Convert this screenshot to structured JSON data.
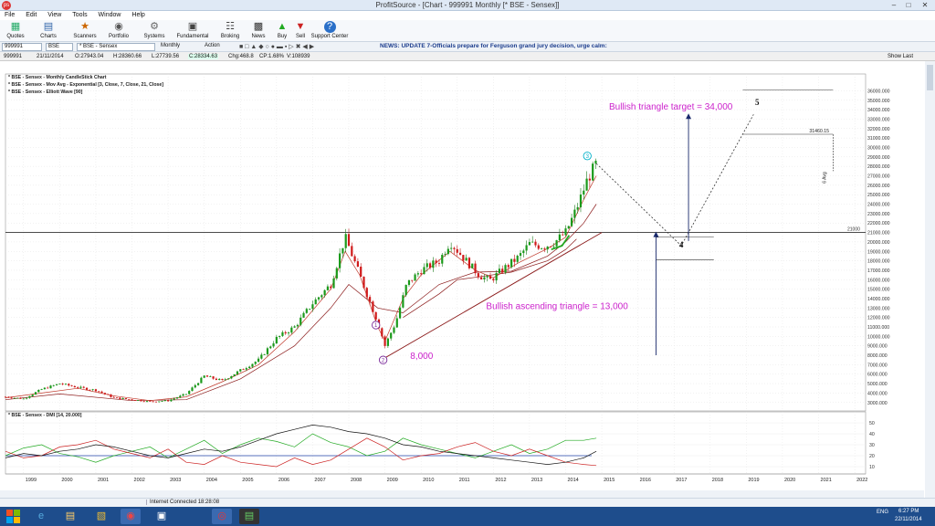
{
  "window": {
    "title": "ProfitSource - [Chart - 999991 Monthly [* BSE - Sensex]]",
    "app_logo_text": "ps"
  },
  "menu": [
    "File",
    "Edit",
    "View",
    "Tools",
    "Window",
    "Help"
  ],
  "toolbar": [
    {
      "label": "Quotes",
      "icon": "quotes-icon"
    },
    {
      "label": "Charts",
      "icon": "charts-icon"
    },
    {
      "label": "Scanners",
      "icon": "scanners-icon"
    },
    {
      "label": "Portfolio",
      "icon": "portfolio-icon"
    },
    {
      "label": "Systems",
      "icon": "systems-icon"
    },
    {
      "label": "Fundamental",
      "icon": "fundamental-icon"
    },
    {
      "label": "Broking",
      "icon": "broking-icon"
    },
    {
      "label": "News",
      "icon": "news-icon"
    },
    {
      "label": "Buy",
      "icon": "buy-icon"
    },
    {
      "label": "Sell",
      "icon": "sell-icon"
    },
    {
      "label": "Support Center",
      "icon": "help-icon"
    }
  ],
  "toolbar2": {
    "symbol": "999991",
    "exchange": "BSE",
    "instrument": "* BSE - Sensex",
    "period": "Monthly",
    "action": "Action",
    "news": "NEWS: UPDATE 7-Officials prepare for Ferguson grand jury decision, urge calm:"
  },
  "infobar": {
    "symbol": "999991",
    "date": "21/11/2014",
    "open": "O:27943.04",
    "high": "H:28360.66",
    "low": "L:27739.56",
    "close": "C:28334.63",
    "change": "Chg:468.8",
    "change_pct": "CP:1.68%",
    "volume": "V:108939",
    "show_last": "Show Last"
  },
  "chart_data": {
    "type": "line",
    "legend": [
      "* BSE - Sensex - Monthly CandleStick Chart",
      "* BSE - Sensex - Mov Avg - Exponential [3, Close, 7, Close, 21, Close]",
      "* BSE - Sensex - Elliott Wave [90]"
    ],
    "x_ticks": [
      "1999",
      "2000",
      "2001",
      "2002",
      "2003",
      "2004",
      "2005",
      "2006",
      "2007",
      "2008",
      "2009",
      "2010",
      "2011",
      "2012",
      "2013",
      "2014",
      "2015",
      "2016",
      "2017",
      "2018",
      "2019",
      "2020",
      "2021",
      "2022"
    ],
    "y_ticks": [
      "36000.000",
      "35000.000",
      "34000.000",
      "33000.000",
      "32000.000",
      "31000.000",
      "30000.000",
      "29000.000",
      "28000.000",
      "27000.000",
      "26000.000",
      "25000.000",
      "24000.000",
      "23000.000",
      "22000.000",
      "21000.000",
      "20000.000",
      "19000.000",
      "18000.000",
      "17000.000",
      "16000.000",
      "15000.000",
      "14000.000",
      "13000.000",
      "12000.000",
      "11000.000",
      "10000.000",
      "9000.000",
      "8000.000",
      "7000.000",
      "6000.000",
      "5000.000",
      "4000.000",
      "3000.000"
    ],
    "ylim": [
      2300,
      37200
    ],
    "price_series": {
      "x": [
        1998.5,
        1999.0,
        1999.5,
        2000.0,
        2000.5,
        2001.0,
        2001.5,
        2002.0,
        2002.5,
        2003.0,
        2003.5,
        2004.0,
        2004.5,
        2005.0,
        2005.5,
        2006.0,
        2006.5,
        2007.0,
        2007.5,
        2007.9,
        2008.2,
        2008.5,
        2008.8,
        2009.0,
        2009.3,
        2009.6,
        2010.0,
        2010.5,
        2010.8,
        2011.2,
        2011.6,
        2011.9,
        2012.3,
        2012.7,
        2013.0,
        2013.4,
        2013.7,
        2014.0,
        2014.3,
        2014.6,
        2014.85
      ],
      "y": [
        3600,
        3400,
        4400,
        5000,
        4600,
        4300,
        3500,
        3300,
        3100,
        3200,
        3900,
        5800,
        5300,
        6400,
        7500,
        9800,
        11000,
        13500,
        15500,
        20500,
        17500,
        14500,
        11500,
        9000,
        11500,
        15500,
        17000,
        18000,
        20000,
        18200,
        16500,
        15900,
        17200,
        18400,
        19800,
        19500,
        20000,
        21000,
        23500,
        26600,
        28300
      ]
    },
    "ema_short": {
      "x": [
        1998.5,
        1999.5,
        2000.5,
        2001.5,
        2002.5,
        2003.5,
        2004.5,
        2005.5,
        2006.5,
        2007.5,
        2007.9,
        2008.3,
        2008.8,
        2009.0,
        2009.5,
        2010.0,
        2010.8,
        2011.5,
        2012.0,
        2012.7,
        2013.5,
        2014.0,
        2014.5,
        2014.85
      ],
      "y": [
        3500,
        4000,
        4500,
        3700,
        3200,
        3600,
        5200,
        7000,
        10500,
        15000,
        19000,
        16500,
        11000,
        9500,
        14000,
        16500,
        19000,
        17000,
        16200,
        17800,
        19300,
        20500,
        24500,
        27000
      ]
    },
    "ema_long": {
      "x": [
        1998.5,
        2000.0,
        2002.0,
        2003.5,
        2005.0,
        2006.5,
        2007.5,
        2008.0,
        2008.8,
        2009.5,
        2010.5,
        2011.5,
        2012.5,
        2013.5,
        2014.0,
        2014.5,
        2014.85
      ],
      "y": [
        3300,
        3900,
        3200,
        3300,
        5500,
        9000,
        13000,
        15500,
        13000,
        12500,
        15500,
        16800,
        16900,
        18500,
        20000,
        22000,
        24000
      ],
      "color": "#8b1a1a"
    },
    "ema_21": {
      "x": [
        2009.5,
        2010.5,
        2011.0,
        2011.6,
        2012.5,
        2013.5,
        2014.0,
        2014.3
      ],
      "y": [
        12000,
        14500,
        16000,
        16300,
        16800,
        18000,
        19200,
        20300
      ],
      "color": "#8b1a1a"
    },
    "ema_green": {
      "x": [
        2013.6,
        2013.9,
        2014.1
      ],
      "y": [
        19200,
        19600,
        20700
      ],
      "color": "#22aa22"
    },
    "resistance_line": {
      "y": 21000,
      "label": "21000"
    },
    "trendline": {
      "x": [
        2008.9,
        2015.0
      ],
      "y": [
        7500,
        21000
      ],
      "color": "#8b1a1a"
    },
    "projection": {
      "x": [
        2014.85,
        2017.2,
        2019.2
      ],
      "y": [
        28300,
        19600,
        33500
      ]
    },
    "wave_labels": [
      {
        "text": "1",
        "x": 2008.75,
        "y": 11200,
        "color": "#7a2a9a"
      },
      {
        "text": "2",
        "x": 2008.95,
        "y": 7500,
        "color": "#7a2a9a"
      },
      {
        "text": "3",
        "x": 2014.6,
        "y": 29100,
        "color": "#00b0c8"
      },
      {
        "text": "4",
        "x": 2017.2,
        "y": 19400,
        "color": "#000000"
      },
      {
        "text": "5",
        "x": 2019.3,
        "y": 34500,
        "color": "#000000"
      }
    ],
    "annotations": [
      {
        "text": "Bullish triangle target = 34,000",
        "x": 2015.2,
        "y": 34000,
        "color": "#cc22cc",
        "size": 10
      },
      {
        "text": "Bullish ascending triangle = 13,000",
        "x": 2011.8,
        "y": 12900,
        "color": "#cc22cc",
        "size": 10
      },
      {
        "text": "8,000",
        "x": 2009.7,
        "y": 7600,
        "color": "#cc22cc",
        "size": 10
      }
    ],
    "target_arrows": [
      {
        "x": 2017.4,
        "y0": 20100,
        "y1": 33500
      },
      {
        "x": 2016.5,
        "y0": 8000,
        "y1": 21000
      }
    ],
    "box_lines": [
      {
        "x": [
          2018.9,
          2021.4
        ],
        "y": 36100
      },
      {
        "x": [
          2018.9,
          2021.4
        ],
        "y": 31400,
        "label": "31460.15"
      },
      {
        "x": [
          2016.5,
          2018.1
        ],
        "y": 20500
      },
      {
        "x": [
          2016.5,
          2018.1
        ],
        "y": 18100
      }
    ],
    "duration_label": "6 Avg",
    "indicator": {
      "title": "* BSE - Sensex - DMI [14, 20.000]",
      "y_ticks": [
        "50",
        "40",
        "30",
        "20",
        "10"
      ],
      "ylim": [
        5,
        55
      ],
      "x": [
        1998.5,
        1999.0,
        1999.5,
        2000.0,
        2000.5,
        2001.0,
        2001.5,
        2002.0,
        2002.5,
        2003.0,
        2003.5,
        2004.0,
        2004.5,
        2005.0,
        2005.5,
        2006.0,
        2006.5,
        2007.0,
        2007.5,
        2008.0,
        2008.5,
        2009.0,
        2009.5,
        2010.0,
        2010.5,
        2011.0,
        2011.5,
        2012.0,
        2012.5,
        2013.0,
        2013.5,
        2014.0,
        2014.5,
        2014.85
      ],
      "plus_di": [
        20,
        27,
        30,
        22,
        19,
        14,
        20,
        24,
        28,
        18,
        26,
        34,
        22,
        30,
        36,
        33,
        28,
        40,
        32,
        28,
        20,
        24,
        36,
        30,
        26,
        22,
        18,
        24,
        30,
        22,
        26,
        34,
        34,
        36
      ],
      "minus_di": [
        24,
        18,
        20,
        28,
        30,
        34,
        26,
        22,
        18,
        26,
        14,
        12,
        20,
        14,
        12,
        10,
        18,
        12,
        16,
        26,
        36,
        28,
        16,
        20,
        22,
        28,
        32,
        24,
        20,
        26,
        20,
        14,
        12,
        11
      ],
      "adx": [
        18,
        22,
        20,
        24,
        26,
        30,
        28,
        24,
        20,
        18,
        22,
        26,
        24,
        28,
        34,
        40,
        44,
        48,
        46,
        42,
        40,
        36,
        30,
        28,
        24,
        22,
        20,
        18,
        16,
        14,
        12,
        14,
        18,
        24
      ],
      "threshold": 20
    }
  },
  "status": {
    "connection": "Internet Connected 18:28:08"
  },
  "taskbar": {
    "apps": [
      "ie-icon",
      "explorer-icon",
      "chrome-icon",
      "folder-icon",
      "profitsource-icon",
      "terminal-icon"
    ],
    "lang": "ENG",
    "time": "6:27 PM",
    "date": "22/11/2014"
  }
}
